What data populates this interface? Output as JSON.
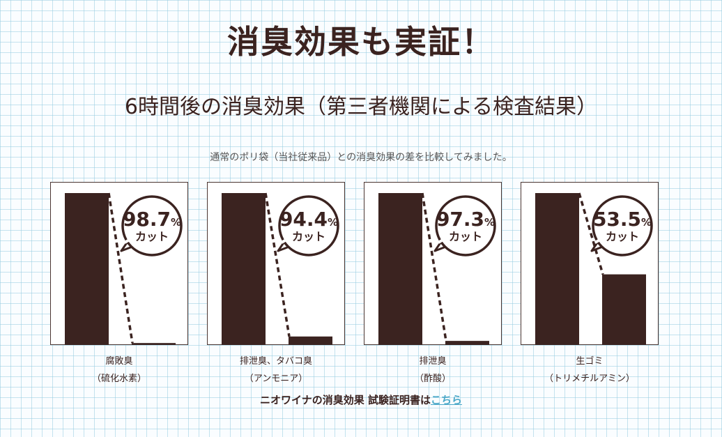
{
  "title": "消臭効果も実証！",
  "subtitle": "6時間後の消臭効果（第三者機関による検査結果）",
  "lead": "通常のポリ袋（当社従来品）との消臭効果の差を比較してみました。",
  "colors": {
    "bar": "#3b2320",
    "link": "#4aa8c8"
  },
  "chart_data": [
    {
      "type": "bar",
      "cut_number": "98.7",
      "cut_percent": "%",
      "cut_label": "カット",
      "values": [
        100,
        1.3
      ],
      "label_line1": "腐敗臭",
      "label_line2": "（硫化水素）"
    },
    {
      "type": "bar",
      "cut_number": "94.4",
      "cut_percent": "%",
      "cut_label": "カット",
      "values": [
        100,
        5.6
      ],
      "label_line1": "排泄臭、タバコ臭",
      "label_line2": "（アンモニア）"
    },
    {
      "type": "bar",
      "cut_number": "97.3",
      "cut_percent": "%",
      "cut_label": "カット",
      "values": [
        100,
        2.7
      ],
      "label_line1": "排泄臭",
      "label_line2": "（酢酸）"
    },
    {
      "type": "bar",
      "cut_number": "53.5",
      "cut_percent": "%",
      "cut_label": "カット",
      "values": [
        100,
        46.5
      ],
      "label_line1": "生ゴミ",
      "label_line2": "（トリメチルアミン）"
    }
  ],
  "footer": {
    "text": "ニオワイナの消臭効果 試験証明書は",
    "link": "こちら"
  }
}
